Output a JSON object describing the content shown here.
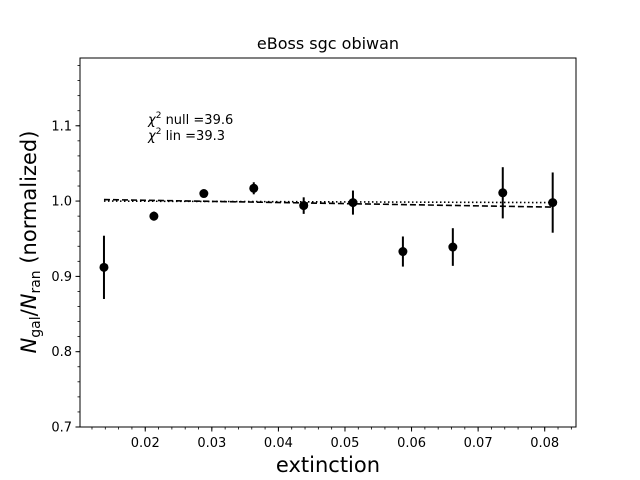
{
  "chart_data": {
    "type": "scatter",
    "title": "eBoss sgc obiwan",
    "xlabel": "extinction",
    "ylabel": {
      "prefix": "N",
      "sub1": "gal",
      "slash": "/",
      "mid": "N",
      "sub2": "ran",
      "suffix": " (normalized)"
    },
    "xlim": [
      0.0102,
      0.0847
    ],
    "ylim": [
      0.7,
      1.19
    ],
    "xticks": [
      0.02,
      0.03,
      0.04,
      0.05,
      0.06,
      0.07,
      0.08
    ],
    "xtick_labels": [
      "0.02",
      "0.03",
      "0.04",
      "0.05",
      "0.06",
      "0.07",
      "0.08"
    ],
    "yticks": [
      0.7,
      0.8,
      0.9,
      1.0,
      1.1
    ],
    "ytick_labels": [
      "0.7",
      "0.8",
      "0.9",
      "1.0",
      "1.1"
    ],
    "annotations": [
      {
        "chi": "χ",
        "sup": "2",
        "text": " null =39.6"
      },
      {
        "chi": "χ",
        "sup": "2",
        "text": " lin =39.3"
      }
    ],
    "points": [
      {
        "x": 0.0138,
        "y": 0.912,
        "err": 0.042
      },
      {
        "x": 0.0213,
        "y": 0.98,
        "err": 0.006
      },
      {
        "x": 0.0288,
        "y": 1.01,
        "err": 0.004
      },
      {
        "x": 0.0363,
        "y": 1.017,
        "err": 0.008
      },
      {
        "x": 0.0438,
        "y": 0.994,
        "err": 0.011
      },
      {
        "x": 0.0512,
        "y": 0.998,
        "err": 0.016
      },
      {
        "x": 0.0587,
        "y": 0.933,
        "err": 0.02
      },
      {
        "x": 0.0662,
        "y": 0.939,
        "err": 0.025
      },
      {
        "x": 0.0737,
        "y": 1.011,
        "err": 0.034
      },
      {
        "x": 0.0812,
        "y": 0.998,
        "err": 0.04
      }
    ],
    "lines": [
      {
        "style": "dotted",
        "x": [
          0.0138,
          0.0812
        ],
        "y": [
          1.0,
          0.998
        ]
      },
      {
        "style": "dashed",
        "x": [
          0.0138,
          0.0812
        ],
        "y": [
          1.002,
          0.992
        ]
      }
    ],
    "grid": false,
    "colors": {
      "points": "#000000",
      "lines": "#000000"
    }
  }
}
